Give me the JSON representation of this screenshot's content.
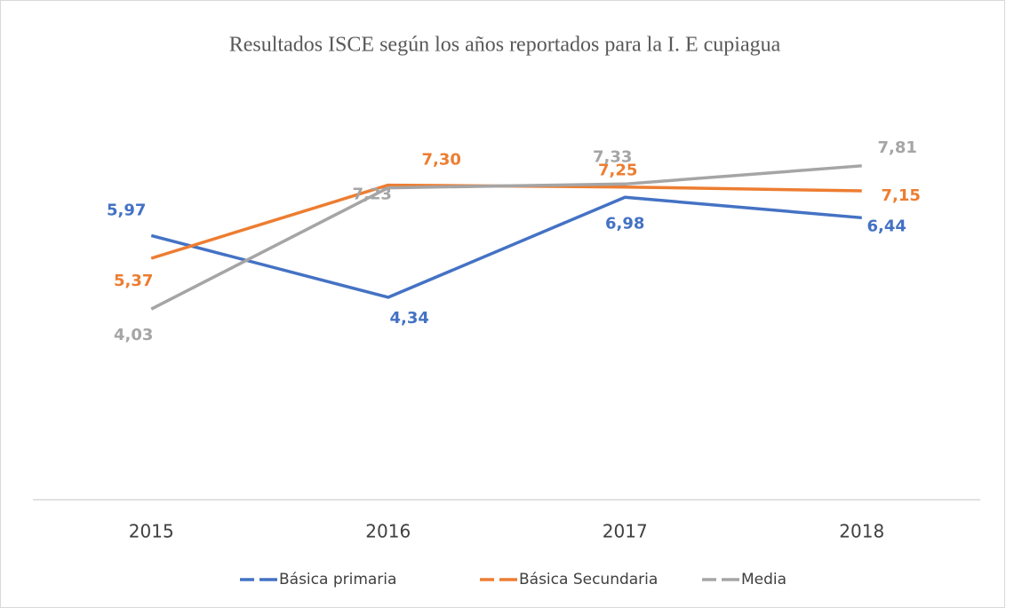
{
  "chart_data": {
    "type": "line",
    "title": "Resultados ISCE según los años reportados para  la I. E cupiagua",
    "categories": [
      "2015",
      "2016",
      "2017",
      "2018"
    ],
    "ylim": [
      -1,
      9
    ],
    "series": [
      {
        "name": "Básica primaria",
        "color": "#4472c4",
        "values": [
          5.97,
          4.34,
          6.98,
          6.44
        ],
        "value_labels": [
          "5,97",
          "4,34",
          "6,98",
          "6,44"
        ]
      },
      {
        "name": "Básica Secundaria",
        "color": "#ed7d31",
        "values": [
          5.37,
          7.3,
          7.25,
          7.15
        ],
        "value_labels": [
          "5,37",
          "7,30",
          "7,25",
          "7,15"
        ]
      },
      {
        "name": "Media",
        "color": "#a5a5a5",
        "values": [
          4.03,
          7.23,
          7.33,
          7.81
        ],
        "value_labels": [
          "4,03",
          "7,23",
          "7,33",
          "7,81"
        ]
      }
    ]
  }
}
